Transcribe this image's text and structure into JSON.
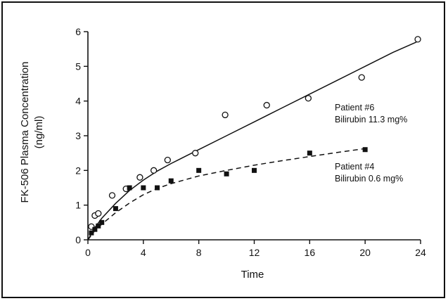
{
  "chart_data": {
    "type": "scatter",
    "title": "",
    "xlabel": "Time",
    "ylabel": "FK-506 Plasma Concentration",
    "ylabel_unit": "(ng/ml)",
    "xlim": [
      0,
      24
    ],
    "ylim": [
      0,
      6
    ],
    "xticks": [
      0,
      4,
      8,
      12,
      16,
      20,
      24
    ],
    "yticks": [
      0,
      1,
      2,
      3,
      4,
      5,
      6
    ],
    "grid": false,
    "series": [
      {
        "name": "Patient #6",
        "annotation": [
          "Patient #6",
          "Bilirubin 11.3 mg%"
        ],
        "marker": "open-circle",
        "line": "solid",
        "x": [
          0.25,
          0.5,
          0.75,
          1.75,
          2.75,
          3.75,
          4.75,
          5.75,
          7.75,
          9.9,
          12.9,
          15.9,
          19.75,
          23.8
        ],
        "y": [
          0.38,
          0.7,
          0.76,
          1.28,
          1.47,
          1.8,
          2.0,
          2.3,
          2.5,
          3.6,
          3.88,
          4.08,
          4.68,
          5.78
        ]
      },
      {
        "name": "Patient #4",
        "annotation": [
          "Patient #4",
          "Bilirubin 0.6 mg%"
        ],
        "marker": "filled-square",
        "line": "dashed",
        "x": [
          0.25,
          0.5,
          0.75,
          1.0,
          2.0,
          3.0,
          4.0,
          5.0,
          6.0,
          8.0,
          10.0,
          12.0,
          16.0,
          20.0
        ],
        "y": [
          0.2,
          0.3,
          0.4,
          0.5,
          0.9,
          1.5,
          1.5,
          1.5,
          1.7,
          2.0,
          1.9,
          2.0,
          2.5,
          2.6
        ]
      }
    ],
    "fit_lines": [
      {
        "series": "Patient #6",
        "style": "solid",
        "x": [
          0,
          0.5,
          1,
          2,
          3,
          4,
          5,
          6,
          7,
          8,
          10,
          12,
          14,
          16,
          18,
          20,
          22,
          23.7
        ],
        "y": [
          0.0,
          0.35,
          0.62,
          1.05,
          1.42,
          1.72,
          1.98,
          2.2,
          2.4,
          2.6,
          3.0,
          3.4,
          3.8,
          4.2,
          4.6,
          5.0,
          5.4,
          5.7
        ]
      },
      {
        "series": "Patient #4",
        "style": "dashed",
        "x": [
          0,
          0.5,
          1,
          2,
          3,
          4,
          5,
          6,
          8,
          10,
          12,
          14,
          16,
          18,
          20
        ],
        "y": [
          0.0,
          0.27,
          0.45,
          0.78,
          1.06,
          1.3,
          1.48,
          1.62,
          1.84,
          2.0,
          2.15,
          2.28,
          2.4,
          2.52,
          2.63
        ]
      }
    ],
    "colors": {
      "ink": "#111111",
      "background": "#ffffff"
    }
  }
}
